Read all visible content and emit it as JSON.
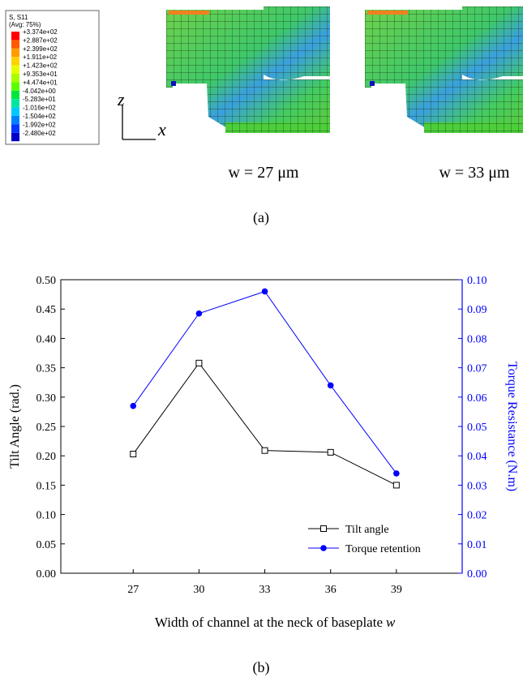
{
  "figure_a": {
    "contour_legend": {
      "title": "S, S11",
      "subtitle": "(Avg: 75%)",
      "labels": [
        "+3.374e+02",
        "+2.887e+02",
        "+2.399e+02",
        "+1.911e+02",
        "+1.423e+02",
        "+9.353e+01",
        "+4.474e+01",
        "-4.042e+00",
        "-5.283e+01",
        "-1.016e+02",
        "-1.504e+02",
        "-1.992e+02",
        "-2.480e+02"
      ],
      "colors": [
        "#ff0000",
        "#ff5a00",
        "#ff9c00",
        "#ffd200",
        "#e6ff00",
        "#a6ff00",
        "#5cff00",
        "#00e63c",
        "#00e6a0",
        "#00c8ff",
        "#0082ff",
        "#0037ff",
        "#0000c8"
      ]
    },
    "axis_z": "z",
    "axis_x": "x",
    "captions": [
      "w = 27 μm",
      "w = 33 μm"
    ],
    "label": "(a)"
  },
  "chart_data": {
    "type": "line",
    "y_label": "Tilt Angle (rad.)",
    "y2_label": "Torque Resistance (N.m)",
    "x_label": "Width of channel at the neck of baseplate",
    "x_label_symbol": "w",
    "x": [
      27,
      30,
      33,
      36,
      39
    ],
    "xlim": [
      23.7,
      42
    ],
    "xticks": [
      27,
      30,
      33,
      36,
      39
    ],
    "ylim": [
      0,
      0.5
    ],
    "yticks": [
      {
        "value": 0,
        "label": "0.00"
      },
      {
        "value": 0.05,
        "label": "0.05"
      },
      {
        "value": 0.1,
        "label": "0.10"
      },
      {
        "value": 0.15,
        "label": "0.15"
      },
      {
        "value": 0.2,
        "label": "0.20"
      },
      {
        "value": 0.25,
        "label": "0.25"
      },
      {
        "value": 0.3,
        "label": "0.30"
      },
      {
        "value": 0.35,
        "label": "0.35"
      },
      {
        "value": 0.4,
        "label": "0.40"
      },
      {
        "value": 0.45,
        "label": "0.45"
      },
      {
        "value": 0.5,
        "label": "0.50"
      }
    ],
    "y2lim": [
      0,
      0.1
    ],
    "y2ticks": [
      {
        "value": 0,
        "label": "0.00"
      },
      {
        "value": 0.01,
        "label": "0.01"
      },
      {
        "value": 0.02,
        "label": "0.02"
      },
      {
        "value": 0.03,
        "label": "0.03"
      },
      {
        "value": 0.04,
        "label": "0.04"
      },
      {
        "value": 0.05,
        "label": "0.05"
      },
      {
        "value": 0.06,
        "label": "0.06"
      },
      {
        "value": 0.07,
        "label": "0.07"
      },
      {
        "value": 0.08,
        "label": "0.08"
      },
      {
        "value": 0.09,
        "label": "0.09"
      },
      {
        "value": 0.1,
        "label": "0.10"
      }
    ],
    "y2_color": "#0000ff",
    "grid": false,
    "legend_position": "lower-right",
    "series": [
      {
        "name": "Tilt angle",
        "color": "#000000",
        "marker": "open-square",
        "values": [
          0.203,
          0.358,
          0.209,
          0.206,
          0.15
        ]
      },
      {
        "name": "Torque retention",
        "color": "#0000ff",
        "marker": "filled-circle",
        "axis": "y2",
        "values": [
          0.057,
          0.0885,
          0.096,
          0.064,
          0.034
        ]
      }
    ],
    "label": "(b)"
  }
}
